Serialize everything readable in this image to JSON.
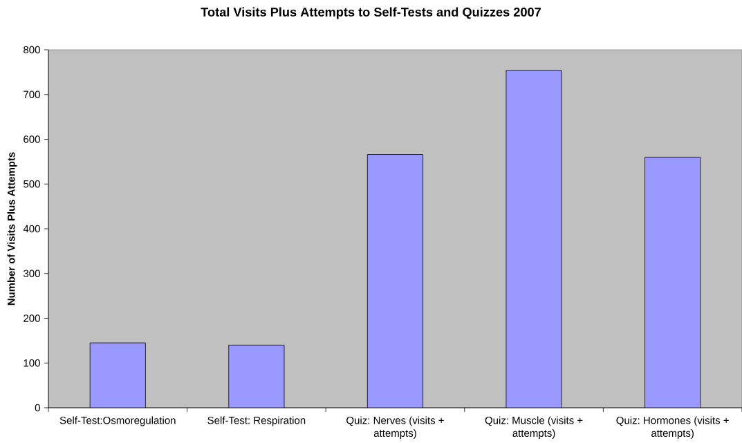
{
  "chart_data": {
    "type": "bar",
    "title": "Total Visits Plus Attempts to Self-Tests and Quizzes 2007",
    "ylabel": "Number of Visits Plus Attempts",
    "categories": [
      "Self-Test:Osmoregulation",
      "Self-Test: Respiration",
      "Quiz: Nerves (visits + attempts)",
      "Quiz: Muscle (visits + attempts)",
      "Quiz: Hormones (visits + attempts)"
    ],
    "values": [
      145,
      140,
      566,
      754,
      560
    ],
    "color": "#9999ff",
    "ylim": [
      0,
      800
    ],
    "yticks": [
      0,
      100,
      200,
      300,
      400,
      500,
      600,
      700,
      800
    ]
  }
}
